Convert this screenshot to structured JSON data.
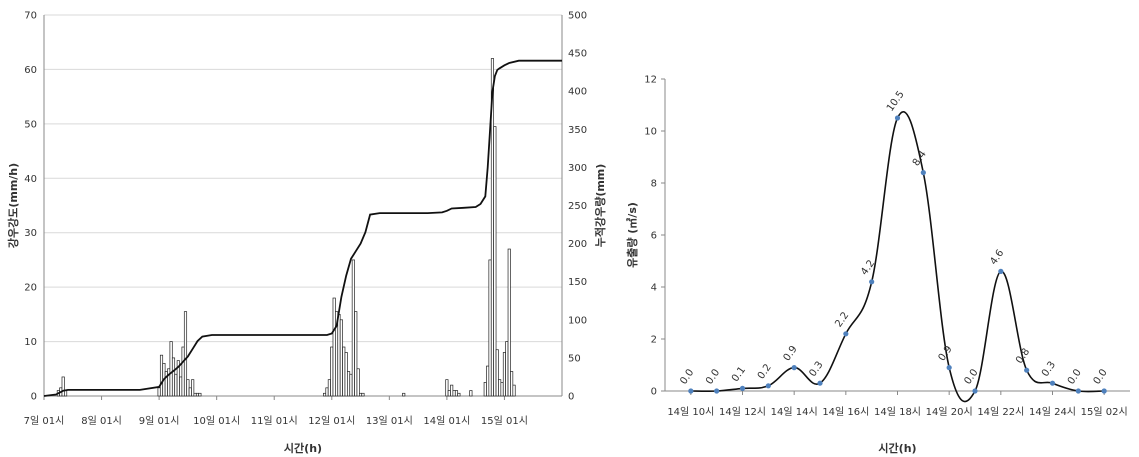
{
  "chart_data": [
    {
      "type": "bar+line",
      "xlabel": "시간(h)",
      "ylabel_left": "강우강도(mm/h)",
      "ylabel_right": "누적강우량(mm)",
      "ylim_left": [
        0,
        70
      ],
      "ylim_right": [
        0,
        500
      ],
      "yticks_left": [
        0,
        10,
        20,
        30,
        40,
        50,
        60,
        70
      ],
      "yticks_right": [
        0,
        50,
        100,
        150,
        200,
        250,
        300,
        350,
        400,
        450,
        500
      ],
      "xlim_hours": [
        0,
        216
      ],
      "xticks": [
        {
          "label": "7일 01시",
          "hour": 0
        },
        {
          "label": "8일 01시",
          "hour": 24
        },
        {
          "label": "9일 01시",
          "hour": 48
        },
        {
          "label": "10일 01시",
          "hour": 72
        },
        {
          "label": "11일 01시",
          "hour": 96
        },
        {
          "label": "12일 01시",
          "hour": 120
        },
        {
          "label": "13일 01시",
          "hour": 144
        },
        {
          "label": "14일 01시",
          "hour": 168
        },
        {
          "label": "15일 01시",
          "hour": 192
        }
      ],
      "gridlines": "horizontal",
      "series": [
        {
          "kind": "bar",
          "axis": "left",
          "hours": [
            6,
            7,
            8,
            9,
            48,
            49,
            50,
            51,
            52,
            53,
            54,
            55,
            56,
            57,
            58,
            59,
            60,
            61,
            62,
            63,
            64,
            65,
            117,
            118,
            119,
            120,
            121,
            122,
            123,
            124,
            125,
            126,
            127,
            128,
            129,
            130,
            131,
            132,
            133,
            150,
            168,
            169,
            170,
            171,
            172,
            173,
            178,
            184,
            185,
            186,
            187,
            188,
            189,
            190,
            191,
            192,
            193,
            194,
            195,
            196
          ],
          "values": [
            1,
            1.5,
            3.5,
            1,
            1.5,
            7.5,
            6,
            4.5,
            5,
            10,
            7,
            4,
            6.5,
            3.5,
            9,
            15.5,
            3,
            1.5,
            3,
            0.5,
            0.5,
            0.5,
            0.5,
            1.5,
            3,
            9,
            18,
            15.5,
            15,
            14,
            9,
            8,
            4.5,
            4,
            25,
            15.5,
            5,
            0.5,
            0.5,
            0.5,
            3,
            1,
            2,
            1,
            1,
            0.5,
            1,
            2.5,
            5.5,
            25,
            62,
            49.5,
            8.5,
            3,
            2.5,
            8,
            10,
            27,
            4.5,
            2
          ]
        },
        {
          "kind": "line",
          "axis": "right",
          "x": [
            0,
            5,
            8,
            10,
            20,
            40,
            48,
            50,
            52,
            54,
            56,
            58,
            60,
            62,
            64,
            66,
            70,
            80,
            90,
            100,
            110,
            118,
            120,
            122,
            124,
            126,
            128,
            130,
            132,
            134,
            136,
            140,
            145,
            150,
            160,
            166,
            168,
            170,
            175,
            180,
            182,
            184,
            185,
            186,
            187,
            188,
            189,
            190,
            191,
            192,
            194,
            198,
            205,
            216
          ],
          "y": [
            0,
            2,
            7,
            8,
            8,
            8,
            12,
            22,
            28,
            33,
            38,
            45,
            52,
            62,
            72,
            78,
            80,
            80,
            80,
            80,
            80,
            80,
            82,
            92,
            130,
            158,
            180,
            190,
            200,
            215,
            238,
            240,
            240,
            240,
            240,
            241,
            243,
            246,
            247,
            248,
            252,
            262,
            300,
            350,
            400,
            420,
            428,
            430,
            432,
            434,
            437,
            440,
            440,
            440
          ]
        }
      ]
    },
    {
      "type": "line",
      "xlabel": "시간(h)",
      "ylabel": "유출량 (㎥/s)",
      "ylim": [
        0,
        12
      ],
      "yticks": [
        0,
        2,
        4,
        6,
        8,
        10,
        12
      ],
      "gridlines": "none",
      "xlim_hours": [
        9,
        27
      ],
      "xticks": [
        {
          "label": "14일 10시",
          "hour": 10
        },
        {
          "label": "14일 12시",
          "hour": 12
        },
        {
          "label": "14일 14시",
          "hour": 14
        },
        {
          "label": "14일 16시",
          "hour": 16
        },
        {
          "label": "14일 18시",
          "hour": 18
        },
        {
          "label": "14일 20시",
          "hour": 20
        },
        {
          "label": "14일 22시",
          "hour": 22
        },
        {
          "label": "14일 24시",
          "hour": 24
        },
        {
          "label": "15일 02시",
          "hour": 26
        }
      ],
      "series": [
        {
          "x": [
            10,
            11,
            12,
            13,
            14,
            15,
            16,
            17,
            18,
            19,
            20,
            21,
            22,
            23,
            24,
            25,
            26
          ],
          "y": [
            0.0,
            0.0,
            0.1,
            0.2,
            0.9,
            0.3,
            2.2,
            4.2,
            10.5,
            8.4,
            0.9,
            0.0,
            4.6,
            0.8,
            0.3,
            0.0,
            0.0
          ],
          "labels": [
            "0.0",
            "0.0",
            "0.1",
            "0.2",
            "0.9",
            "0.3",
            "2.2",
            "4.2",
            "10.5",
            "8.4",
            "0.9",
            "0.0",
            "4.6",
            "0.8",
            "0.3",
            "0.0",
            "0.0"
          ]
        }
      ]
    }
  ]
}
